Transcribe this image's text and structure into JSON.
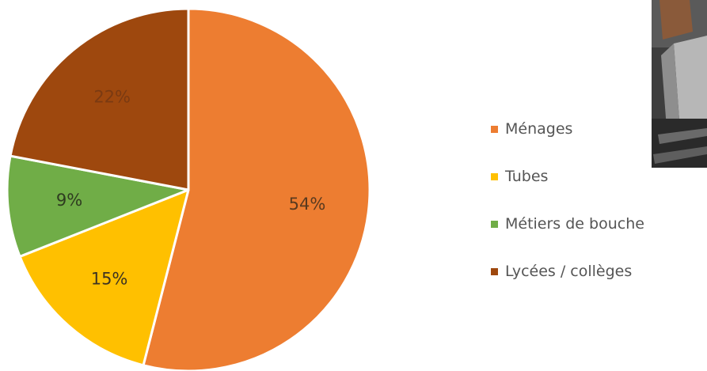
{
  "chart_data": {
    "type": "pie",
    "categories": [
      "Ménages",
      "Tubes",
      "Métiers de bouche",
      "Lycées / collèges"
    ],
    "values": [
      54,
      15,
      9,
      22
    ],
    "data_labels": [
      "54%",
      "15%",
      "9%",
      "22%"
    ],
    "colors": [
      "#ED7D31",
      "#FFC000",
      "#70AD47",
      "#9E480E"
    ],
    "label_colors": [
      "#5a3a1f",
      "#3d3322",
      "#2e3b20",
      "#7a3a12"
    ],
    "start_angle_deg": 0,
    "direction": "clockwise",
    "legend_position": "right"
  },
  "photo": {
    "icon": "photo-of-container"
  }
}
